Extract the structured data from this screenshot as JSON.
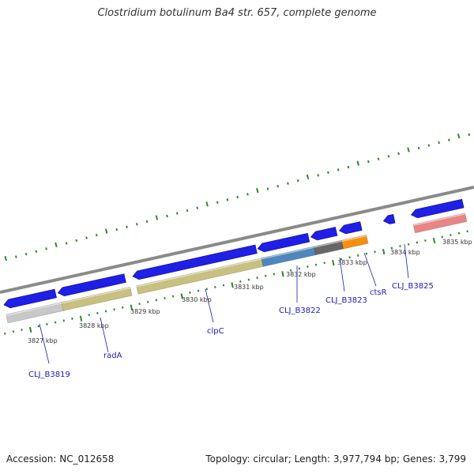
{
  "title": "Clostridium botulinum Ba4 str. 657, complete genome",
  "footer": {
    "accession": "Accession: NC_012658",
    "summary": "Topology: circular; Length: 3,977,794 bp; Genes: 3,799"
  },
  "colors": {
    "cds_strand": "#1f1fe6",
    "backbone": "#8a8a8a",
    "tick": "#2b8a2b",
    "label": "#1a1ab8",
    "orange": "#f5900f",
    "salmon": "#e88585",
    "khaki": "#c8c080",
    "steel_blue": "#4f86be",
    "dark_grey": "#666666",
    "light_grey": "#c8c8c8"
  },
  "scale_labels": [
    "3827 kbp",
    "3828 kbp",
    "3829 kbp",
    "3830 kbp",
    "3831 kbp",
    "3832 kbp",
    "3833 kbp",
    "3834 kbp",
    "3835 kbp"
  ],
  "gene_labels": [
    "CLJ_B3819",
    "radA",
    "clpC",
    "CLJ_B3822",
    "CLJ_B3823",
    "ctsR",
    "CLJ_B3825"
  ]
}
